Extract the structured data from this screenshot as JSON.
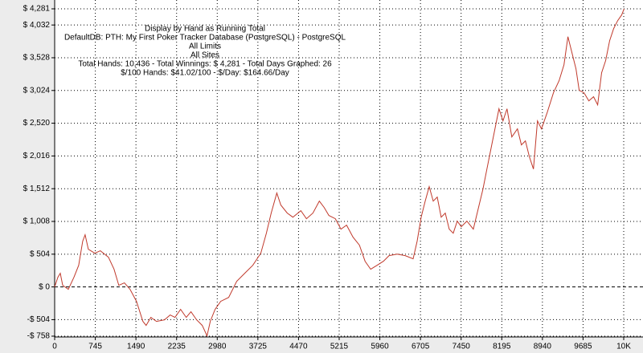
{
  "chart_data": {
    "type": "line",
    "annotations": [
      "Display by Hand as Running Total",
      "DefaultDB: PTH: My First Poker Tracker Database (PostgreSQL) - PostgreSQL",
      "All Limits",
      "All Sites",
      "Total Hands: 10,436 - Total Winnings: $ 4,281 - Total Days Graphed: 26",
      "$/100 Hands: $41.02/100 - $/Day: $164.66/Day"
    ],
    "x": [
      0,
      59,
      103,
      147,
      250,
      353,
      441,
      514,
      559,
      617,
      735,
      838,
      985,
      1088,
      1176,
      1279,
      1382,
      1499,
      1617,
      1676,
      1764,
      1867,
      2014,
      2117,
      2205,
      2308,
      2411,
      2499,
      2602,
      2705,
      2793,
      2852,
      2940,
      3043,
      3190,
      3337,
      3484,
      3631,
      3778,
      3881,
      3969,
      4072,
      4145,
      4263,
      4366,
      4513,
      4616,
      4733,
      4851,
      4939,
      5027,
      5145,
      5248,
      5351,
      5468,
      5586,
      5689,
      5792,
      5909,
      6027,
      6130,
      6277,
      6424,
      6571,
      6644,
      6718,
      6791,
      6865,
      6938,
      7012,
      7085,
      7159,
      7232,
      7306,
      7379,
      7453,
      7556,
      7673,
      7762,
      7850,
      7923,
      7997,
      8070,
      8144,
      8217,
      8291,
      8379,
      8482,
      8555,
      8629,
      8702,
      8776,
      8849,
      8923,
      9026,
      9143,
      9246,
      9335,
      9408,
      9482,
      9555,
      9614,
      9702,
      9790,
      9878,
      9952,
      10025,
      10099,
      10172,
      10246,
      10319,
      10393,
      10436
    ],
    "series": [
      {
        "name": "Running Total",
        "color": "#c0392b",
        "values": [
          0,
          148,
          210,
          25,
          -37,
          148,
          333,
          704,
          803,
          580,
          519,
          556,
          457,
          272,
          25,
          62,
          -37,
          -222,
          -531,
          -593,
          -469,
          -531,
          -506,
          -432,
          -469,
          -346,
          -469,
          -383,
          -506,
          -593,
          -753,
          -531,
          -346,
          -222,
          -161,
          86,
          210,
          333,
          519,
          827,
          1136,
          1445,
          1260,
          1136,
          1074,
          1173,
          1050,
          1136,
          1321,
          1223,
          1099,
          1050,
          889,
          951,
          766,
          642,
          395,
          272,
          333,
          395,
          482,
          506,
          482,
          432,
          704,
          1074,
          1321,
          1544,
          1321,
          1383,
          1074,
          1136,
          889,
          827,
          1013,
          926,
          1013,
          889,
          1198,
          1507,
          1815,
          2124,
          2433,
          2742,
          2556,
          2742,
          2309,
          2433,
          2186,
          2248,
          2001,
          1815,
          2556,
          2433,
          2680,
          2989,
          3174,
          3421,
          3853,
          3606,
          3359,
          3026,
          2989,
          2865,
          2927,
          2803,
          3297,
          3483,
          3791,
          3977,
          4100,
          4187,
          4281
        ]
      }
    ],
    "xlim": [
      0,
      10436
    ],
    "xticks": [
      0,
      745,
      1490,
      2235,
      2980,
      3725,
      4470,
      5215,
      5960,
      6705,
      7450,
      8195,
      8940,
      9685,
      {
        "value": 10430,
        "label": "10K"
      }
    ],
    "ylim": [
      -758,
      4281
    ],
    "yticks": [
      {
        "value": -758,
        "label": "-$ 758"
      },
      {
        "value": -504,
        "label": "-$ 504"
      },
      {
        "value": 0,
        "label": "$ 0"
      },
      {
        "value": 504,
        "label": "$ 504"
      },
      {
        "value": 1008,
        "label": "$ 1,008"
      },
      {
        "value": 1512,
        "label": "$ 1,512"
      },
      {
        "value": 2016,
        "label": "$ 2,016"
      },
      {
        "value": 2520,
        "label": "$ 2,520"
      },
      {
        "value": 3024,
        "label": "$ 3,024"
      },
      {
        "value": 3528,
        "label": "$ 3,528"
      },
      {
        "value": 4032,
        "label": "$ 4,032"
      },
      {
        "value": 4281,
        "label": "$ 4,281"
      }
    ],
    "grid": true
  }
}
